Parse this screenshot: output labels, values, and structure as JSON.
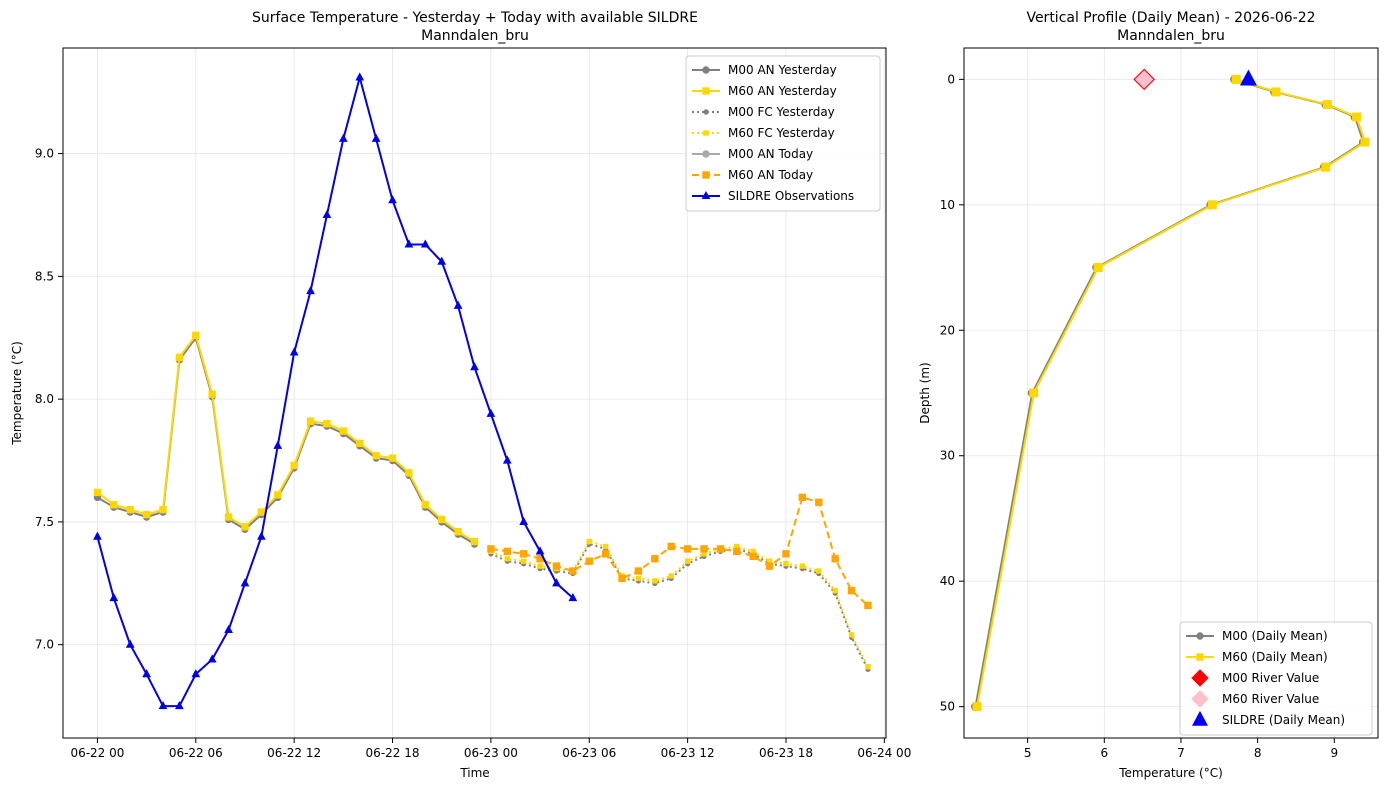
{
  "chart_data": [
    {
      "type": "line",
      "title": "Surface Temperature - Yesterday + Today with available SILDRE",
      "subtitle": "Manndalen_bru",
      "xlabel": "Time",
      "ylabel": "Temperature (°C)",
      "x_type": "hours_since_2026-06-22T00",
      "xlim": [
        -2.1,
        48.1
      ],
      "ylim": [
        6.62,
        9.43
      ],
      "x_ticks": [
        {
          "value": 0,
          "label": "06-22 00"
        },
        {
          "value": 6,
          "label": "06-22 06"
        },
        {
          "value": 12,
          "label": "06-22 12"
        },
        {
          "value": 18,
          "label": "06-22 18"
        },
        {
          "value": 24,
          "label": "06-23 00"
        },
        {
          "value": 30,
          "label": "06-23 06"
        },
        {
          "value": 36,
          "label": "06-23 12"
        },
        {
          "value": 42,
          "label": "06-23 18"
        },
        {
          "value": 48,
          "label": "06-24 00"
        }
      ],
      "y_ticks": [
        {
          "value": 7.0,
          "label": "7.0"
        },
        {
          "value": 7.5,
          "label": "7.5"
        },
        {
          "value": 8.0,
          "label": "8.0"
        },
        {
          "value": 8.5,
          "label": "8.5"
        },
        {
          "value": 9.0,
          "label": "9.0"
        }
      ],
      "grid": true,
      "legend_position": "top-right",
      "series": [
        {
          "name": "M00 AN Yesterday",
          "color": "#808080",
          "style": "solid",
          "marker": "circle",
          "x": [
            0,
            1,
            2,
            3,
            4,
            5,
            6,
            7,
            8,
            9,
            10,
            11,
            12,
            13,
            14,
            15,
            16,
            17,
            18,
            19,
            20,
            21,
            22,
            23
          ],
          "y": [
            7.6,
            7.56,
            7.54,
            7.52,
            7.54,
            8.16,
            8.25,
            8.01,
            7.51,
            7.47,
            7.53,
            7.6,
            7.72,
            7.9,
            7.89,
            7.86,
            7.81,
            7.76,
            7.75,
            7.69,
            7.56,
            7.5,
            7.45,
            7.41
          ]
        },
        {
          "name": "M60 AN Yesterday",
          "color": "#ffd700",
          "style": "solid",
          "marker": "square",
          "x": [
            0,
            1,
            2,
            3,
            4,
            5,
            6,
            7,
            8,
            9,
            10,
            11,
            12,
            13,
            14,
            15,
            16,
            17,
            18,
            19,
            20,
            21,
            22,
            23
          ],
          "y": [
            7.62,
            7.57,
            7.55,
            7.53,
            7.55,
            8.17,
            8.26,
            8.02,
            7.52,
            7.48,
            7.54,
            7.61,
            7.73,
            7.91,
            7.9,
            7.87,
            7.82,
            7.77,
            7.76,
            7.7,
            7.57,
            7.51,
            7.46,
            7.42
          ]
        },
        {
          "name": "M00 FC Yesterday",
          "color": "#808080",
          "style": "dotted",
          "marker": "circle",
          "x": [
            24,
            25,
            26,
            27,
            28,
            29,
            30,
            31,
            32,
            33,
            34,
            35,
            36,
            37,
            38,
            39,
            40,
            41,
            42,
            43,
            44,
            45,
            46,
            47
          ],
          "y": [
            7.37,
            7.34,
            7.33,
            7.31,
            7.3,
            7.29,
            7.41,
            7.39,
            7.27,
            7.26,
            7.25,
            7.27,
            7.33,
            7.36,
            7.38,
            7.39,
            7.37,
            7.33,
            7.32,
            7.31,
            7.29,
            7.21,
            7.03,
            6.9
          ]
        },
        {
          "name": "M60 FC Yesterday",
          "color": "#ffd700",
          "style": "dotted",
          "marker": "square",
          "x": [
            24,
            25,
            26,
            27,
            28,
            29,
            30,
            31,
            32,
            33,
            34,
            35,
            36,
            37,
            38,
            39,
            40,
            41,
            42,
            43,
            44,
            45,
            46,
            47
          ],
          "y": [
            7.38,
            7.35,
            7.34,
            7.32,
            7.31,
            7.3,
            7.42,
            7.4,
            7.28,
            7.27,
            7.26,
            7.28,
            7.34,
            7.37,
            7.39,
            7.4,
            7.38,
            7.34,
            7.33,
            7.32,
            7.3,
            7.22,
            7.04,
            6.91
          ]
        },
        {
          "name": "M00 AN Today",
          "color": "#a9a9a9",
          "style": "solid",
          "marker": "circle",
          "x": [],
          "y": []
        },
        {
          "name": "M60 AN Today",
          "color": "#ffa500",
          "style": "dashed",
          "marker": "square",
          "x": [
            24,
            25,
            26,
            27,
            28,
            29,
            30,
            31,
            32,
            33,
            34,
            35,
            36,
            37,
            38,
            39,
            40,
            41,
            42,
            43,
            44,
            45,
            46,
            47
          ],
          "y": [
            7.39,
            7.38,
            7.37,
            7.35,
            7.32,
            7.3,
            7.34,
            7.37,
            7.27,
            7.3,
            7.35,
            7.4,
            7.39,
            7.39,
            7.39,
            7.38,
            7.36,
            7.32,
            7.37,
            7.6,
            7.58,
            7.35,
            7.22,
            7.16
          ]
        },
        {
          "name": "SILDRE Observations",
          "color": "#0000e6",
          "style": "solid",
          "marker": "triangle",
          "x": [
            0,
            1,
            2,
            3,
            4,
            5,
            6,
            7,
            8,
            9,
            10,
            11,
            12,
            13,
            14,
            15,
            16,
            17,
            18,
            19,
            20,
            21,
            22,
            23,
            24,
            25,
            26,
            27,
            28,
            29
          ],
          "y": [
            7.44,
            7.19,
            7.0,
            6.88,
            6.75,
            6.75,
            6.88,
            6.94,
            7.06,
            7.25,
            7.44,
            7.81,
            8.19,
            8.44,
            8.75,
            9.06,
            9.31,
            9.06,
            8.81,
            8.63,
            8.63,
            8.56,
            8.38,
            8.13,
            7.94,
            7.75,
            7.5,
            7.38,
            7.25,
            7.19
          ]
        }
      ]
    },
    {
      "type": "line",
      "title": "Vertical Profile (Daily Mean) - 2026-06-22",
      "subtitle": "Manndalen_bru",
      "xlabel": "Temperature (°C)",
      "ylabel": "Depth (m)",
      "xlim": [
        4.17,
        9.57
      ],
      "ylim": [
        52.5,
        -2.5
      ],
      "y_inverted": true,
      "x_ticks": [
        {
          "value": 5,
          "label": "5"
        },
        {
          "value": 6,
          "label": "6"
        },
        {
          "value": 7,
          "label": "7"
        },
        {
          "value": 8,
          "label": "8"
        },
        {
          "value": 9,
          "label": "9"
        }
      ],
      "y_ticks": [
        {
          "value": 0,
          "label": "0"
        },
        {
          "value": 10,
          "label": "10"
        },
        {
          "value": 20,
          "label": "20"
        },
        {
          "value": 30,
          "label": "30"
        },
        {
          "value": 40,
          "label": "40"
        },
        {
          "value": 50,
          "label": "50"
        }
      ],
      "grid": true,
      "legend_position": "bottom-right",
      "series": [
        {
          "name": "M00 (Daily Mean)",
          "color": "#808080",
          "style": "solid",
          "marker": "circle",
          "x": [
            7.7,
            8.22,
            8.89,
            9.27,
            9.38,
            8.87,
            7.39,
            5.9,
            5.06,
            4.32
          ],
          "y": [
            0,
            1,
            2,
            3,
            5,
            7,
            10,
            15,
            25,
            50
          ]
        },
        {
          "name": "M60 (Daily Mean)",
          "color": "#ffd700",
          "style": "solid",
          "marker": "square",
          "x": [
            7.72,
            8.24,
            8.91,
            9.29,
            9.4,
            8.89,
            7.41,
            5.92,
            5.08,
            4.34
          ],
          "y": [
            0,
            1,
            2,
            3,
            5,
            7,
            10,
            15,
            25,
            50
          ]
        },
        {
          "name": "M00 River Value",
          "color": "#ff0000",
          "style": "none",
          "marker": "diamond",
          "x": [
            6.52
          ],
          "y": [
            0
          ]
        },
        {
          "name": "M60 River Value",
          "color": "#ffc0cb",
          "style": "none",
          "marker": "diamond",
          "x": [
            6.52
          ],
          "y": [
            0
          ]
        },
        {
          "name": "SILDRE (Daily Mean)",
          "color": "#0000ff",
          "style": "none",
          "marker": "triangle",
          "x": [
            7.88
          ],
          "y": [
            0
          ]
        }
      ]
    }
  ]
}
